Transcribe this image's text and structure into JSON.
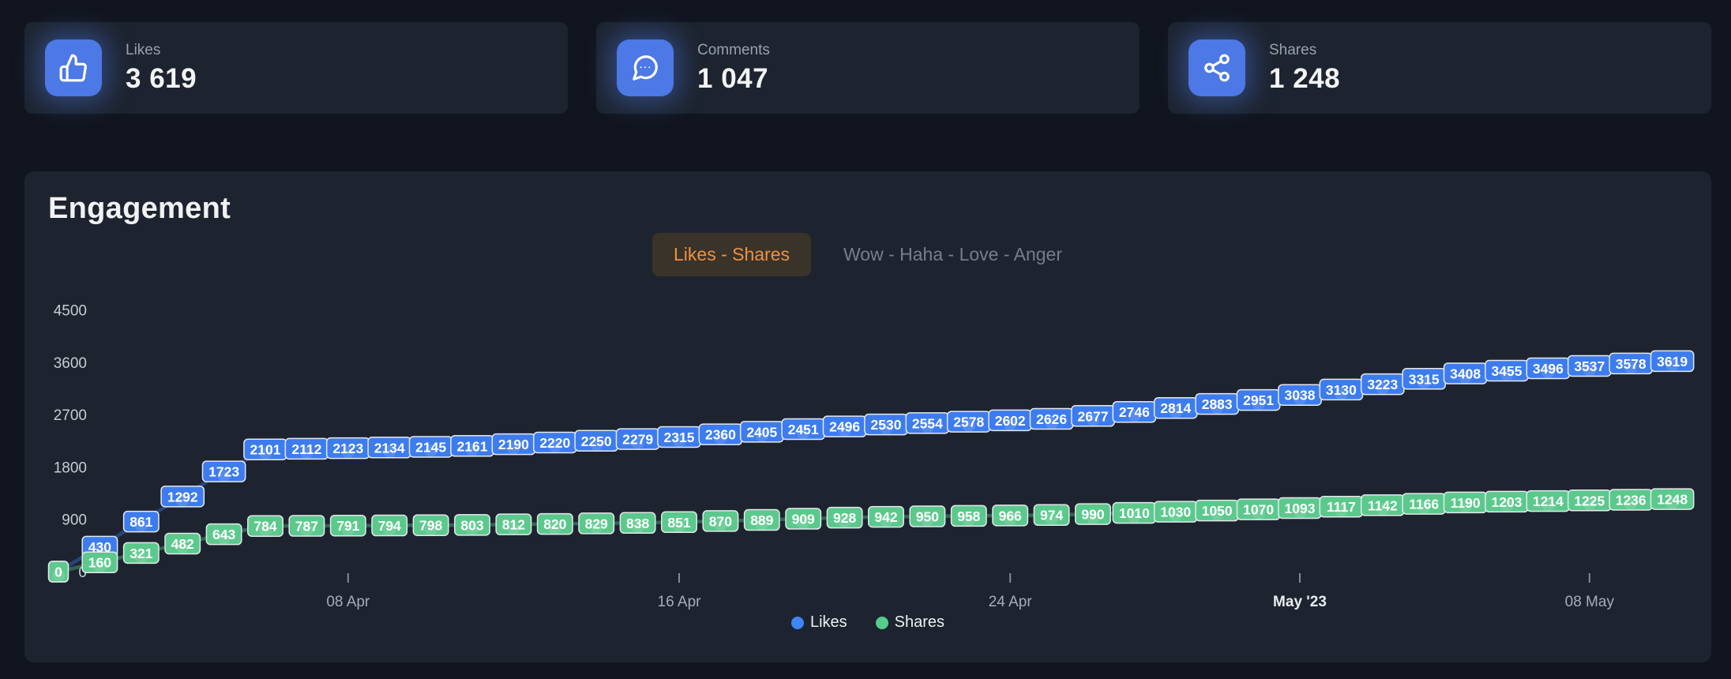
{
  "stats": [
    {
      "label": "Likes",
      "value": "3 619",
      "icon": "thumbs-up-icon"
    },
    {
      "label": "Comments",
      "value": "1 047",
      "icon": "comment-bubble-icon"
    },
    {
      "label": "Shares",
      "value": "1 248",
      "icon": "share-nodes-icon"
    }
  ],
  "panel": {
    "title": "Engagement",
    "tabs": [
      {
        "label": "Likes - Shares",
        "active": true
      },
      {
        "label": "Wow - Haha - Love - Anger",
        "active": false
      }
    ]
  },
  "legend": [
    {
      "label": "Likes"
    },
    {
      "label": "Shares"
    }
  ],
  "colors": {
    "page_bg": "#11151f",
    "card_bg": "#1d242f",
    "icon_tile_blue": "#4d79e6",
    "active_tab_text": "#ef9240",
    "active_tab_bg": "#3a332a",
    "likes_blue": "#3d7cee",
    "shares_green": "#5bc98c",
    "legend_dot_blue": "#3e86f5",
    "legend_dot_green": "#55cb8c",
    "axis_label": "#c7ccd5",
    "x_label": "#a6acb8"
  },
  "chart_data": {
    "type": "line",
    "title": "Engagement",
    "data_labels": true,
    "grid": false,
    "legend_position": "bottom",
    "ylim": [
      0,
      4500
    ],
    "y_ticks": [
      4500,
      3600,
      2700,
      1800,
      900,
      0
    ],
    "x_ticks": [
      {
        "label": "08 Apr",
        "index": 7,
        "bold": false
      },
      {
        "label": "16 Apr",
        "index": 15,
        "bold": false
      },
      {
        "label": "24 Apr",
        "index": 23,
        "bold": false
      },
      {
        "label": "May '23",
        "index": 30,
        "bold": true
      },
      {
        "label": "08 May",
        "index": 37,
        "bold": false
      }
    ],
    "series": [
      {
        "name": "Likes",
        "color": "#3d7cee",
        "legend_color": "#3e86f5",
        "values": [
          0,
          430,
          861,
          1292,
          1723,
          2101,
          2112,
          2123,
          2134,
          2145,
          2161,
          2190,
          2220,
          2250,
          2279,
          2315,
          2360,
          2405,
          2451,
          2496,
          2530,
          2554,
          2578,
          2602,
          2626,
          2677,
          2746,
          2814,
          2883,
          2951,
          3038,
          3130,
          3223,
          3315,
          3408,
          3455,
          3496,
          3537,
          3578,
          3619
        ]
      },
      {
        "name": "Shares",
        "color": "#5bc98c",
        "legend_color": "#55cb8c",
        "values": [
          0,
          160,
          321,
          482,
          643,
          784,
          787,
          791,
          794,
          798,
          803,
          812,
          820,
          829,
          838,
          851,
          870,
          889,
          909,
          928,
          942,
          950,
          958,
          966,
          974,
          990,
          1010,
          1030,
          1050,
          1070,
          1093,
          1117,
          1142,
          1166,
          1190,
          1203,
          1214,
          1225,
          1236,
          1248
        ]
      }
    ]
  }
}
